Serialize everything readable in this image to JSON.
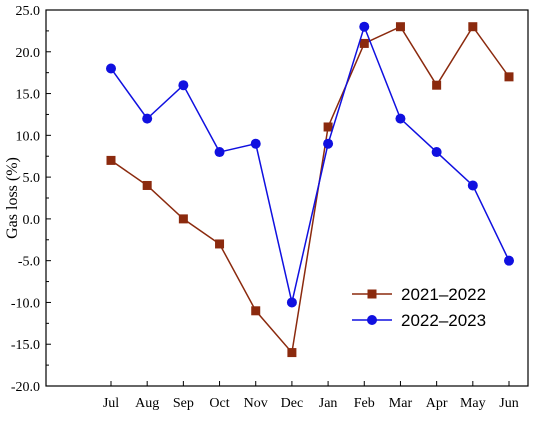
{
  "chart_data": {
    "type": "line",
    "title": "",
    "xlabel": "",
    "ylabel": "Gas loss (%)",
    "categories": [
      "Jul",
      "Aug",
      "Sep",
      "Oct",
      "Nov",
      "Dec",
      "Jan",
      "Feb",
      "Mar",
      "Apr",
      "May",
      "Jun"
    ],
    "ylim": [
      -20,
      25
    ],
    "yticks": [
      -20,
      -15,
      -10,
      -5,
      0,
      5,
      10,
      15,
      20,
      25
    ],
    "ytick_labels": [
      "-20.0",
      "-15.0",
      "-10.0",
      "-5.0",
      "0.0",
      "5.0",
      "10.0",
      "15.0",
      "20.0",
      "25.0"
    ],
    "grid": false,
    "legend_position": "lower-right",
    "series": [
      {
        "name": "2021–2022",
        "color": "#8B2A0E",
        "marker": "square",
        "values": [
          7,
          4,
          0,
          -3,
          -11,
          -16,
          11,
          21,
          23,
          16,
          23,
          17
        ]
      },
      {
        "name": "2022–2023",
        "color": "#1010E0",
        "marker": "circle",
        "values": [
          18,
          12,
          16,
          8,
          9,
          -10,
          9,
          23,
          12,
          8,
          4,
          -5
        ]
      }
    ]
  }
}
